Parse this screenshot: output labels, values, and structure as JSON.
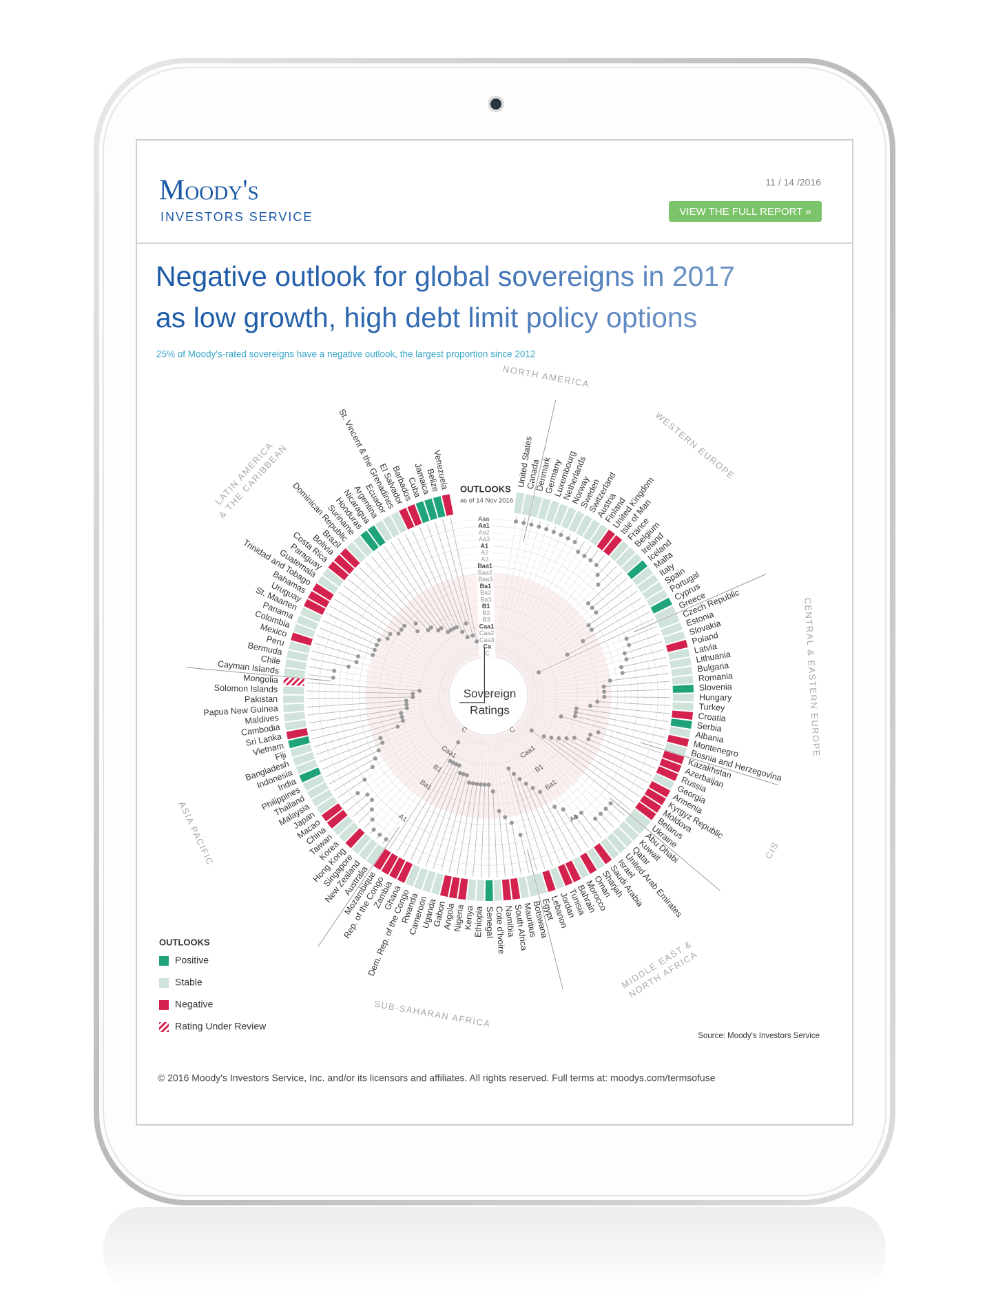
{
  "header": {
    "logo": "Moody's",
    "logo_sub": "INVESTORS SERVICE",
    "date": "11 / 14 /2016",
    "button": "VIEW THE FULL REPORT »"
  },
  "chart_data": {
    "type": "radial-ratings",
    "title_lines": [
      "Negative outlook for global sovereigns in 2017",
      "as low growth, high debt limit policy options"
    ],
    "subtitle": "25% of Moody's-rated sovereigns have a negative outlook, the largest proportion since 2012",
    "outlooks_title": "OUTLOOKS",
    "outlooks_date": "as of 14 Nov 2016",
    "center_label_lines": [
      "Sovereign",
      "Ratings"
    ],
    "rating_scale": [
      "Aaa",
      "Aa1",
      "Aa2",
      "Aa3",
      "A1",
      "A2",
      "A3",
      "Baa1",
      "Baa2",
      "Baa3",
      "Ba1",
      "Ba2",
      "Ba3",
      "B1",
      "B2",
      "B3",
      "Caa1",
      "Caa2",
      "Caa3",
      "Ca",
      "C"
    ],
    "ring_labels": [
      "C",
      "Caa1",
      "B1",
      "Ba1",
      "A1"
    ],
    "legend_title": "OUTLOOKS",
    "legend": [
      {
        "label": "Positive",
        "color": "#1fa37a"
      },
      {
        "label": "Stable",
        "color": "#cfe3db"
      },
      {
        "label": "Negative",
        "color": "#d3224d"
      },
      {
        "label": "Rating Under Review",
        "color": "#d3224d",
        "hatched": true
      }
    ],
    "source": "Source: Moody's Investors Service",
    "regions": [
      {
        "label_lines": [
          "NORTH AMERICA"
        ],
        "countries": [
          {
            "name": "United States",
            "rating": "Aaa",
            "outlook": "Stable"
          },
          {
            "name": "Canada",
            "rating": "Aaa",
            "outlook": "Stable"
          }
        ]
      },
      {
        "label_lines": [
          "WESTERN EUROPE"
        ],
        "countries": [
          {
            "name": "Denmark",
            "rating": "Aaa",
            "outlook": "Stable"
          },
          {
            "name": "Germany",
            "rating": "Aaa",
            "outlook": "Stable"
          },
          {
            "name": "Luxembourg",
            "rating": "Aaa",
            "outlook": "Stable"
          },
          {
            "name": "Netherlands",
            "rating": "Aaa",
            "outlook": "Stable"
          },
          {
            "name": "Norway",
            "rating": "Aaa",
            "outlook": "Stable"
          },
          {
            "name": "Sweden",
            "rating": "Aaa",
            "outlook": "Stable"
          },
          {
            "name": "Switzerland",
            "rating": "Aaa",
            "outlook": "Stable"
          },
          {
            "name": "Austria",
            "rating": "Aa1",
            "outlook": "Stable"
          },
          {
            "name": "Finland",
            "rating": "Aa1",
            "outlook": "Stable"
          },
          {
            "name": "United Kingdom",
            "rating": "Aa1",
            "outlook": "Negative"
          },
          {
            "name": "Isle of Man",
            "rating": "Aa1",
            "outlook": "Negative"
          },
          {
            "name": "France",
            "rating": "Aa2",
            "outlook": "Stable"
          },
          {
            "name": "Belgium",
            "rating": "Aa3",
            "outlook": "Stable"
          },
          {
            "name": "Ireland",
            "rating": "A3",
            "outlook": "Stable"
          },
          {
            "name": "Iceland",
            "rating": "A3",
            "outlook": "Positive"
          },
          {
            "name": "Malta",
            "rating": "A3",
            "outlook": "Stable"
          },
          {
            "name": "Italy",
            "rating": "Baa2",
            "outlook": "Stable"
          },
          {
            "name": "Spain",
            "rating": "Baa2",
            "outlook": "Stable"
          },
          {
            "name": "Portugal",
            "rating": "Ba1",
            "outlook": "Stable"
          },
          {
            "name": "Cyprus",
            "rating": "B1",
            "outlook": "Positive"
          },
          {
            "name": "Greece",
            "rating": "Caa3",
            "outlook": "Stable"
          }
        ]
      },
      {
        "label_lines": [
          "CENTRAL & EASTERN EUROPE"
        ],
        "countries": [
          {
            "name": "Czech Republic",
            "rating": "A1",
            "outlook": "Stable"
          },
          {
            "name": "Estonia",
            "rating": "A1",
            "outlook": "Stable"
          },
          {
            "name": "Slovakia",
            "rating": "A2",
            "outlook": "Stable"
          },
          {
            "name": "Poland",
            "rating": "A2",
            "outlook": "Negative"
          },
          {
            "name": "Latvia",
            "rating": "A3",
            "outlook": "Stable"
          },
          {
            "name": "Lithuania",
            "rating": "A3",
            "outlook": "Stable"
          },
          {
            "name": "Bulgaria",
            "rating": "Baa2",
            "outlook": "Stable"
          },
          {
            "name": "Romania",
            "rating": "Baa3",
            "outlook": "Stable"
          },
          {
            "name": "Slovenia",
            "rating": "Baa3",
            "outlook": "Positive"
          },
          {
            "name": "Hungary",
            "rating": "Baa3",
            "outlook": "Stable"
          },
          {
            "name": "Turkey",
            "rating": "Ba1",
            "outlook": "Stable"
          },
          {
            "name": "Croatia",
            "rating": "Ba2",
            "outlook": "Negative"
          },
          {
            "name": "Serbia",
            "rating": "B1",
            "outlook": "Positive"
          },
          {
            "name": "Albania",
            "rating": "B1",
            "outlook": "Stable"
          },
          {
            "name": "Montenegro",
            "rating": "B1",
            "outlook": "Negative"
          },
          {
            "name": "Bosnia and Herzegovina",
            "rating": "B3",
            "outlook": "Stable"
          }
        ]
      },
      {
        "label_lines": [
          "CIS"
        ],
        "countries": [
          {
            "name": "Kazakhstan",
            "rating": "Baa3",
            "outlook": "Negative"
          },
          {
            "name": "Azerbaijan",
            "rating": "Ba1",
            "outlook": "Negative"
          },
          {
            "name": "Russia",
            "rating": "Ba1",
            "outlook": "Negative"
          },
          {
            "name": "Georgia",
            "rating": "Ba3",
            "outlook": "Stable"
          },
          {
            "name": "Armenia",
            "rating": "B1",
            "outlook": "Negative"
          },
          {
            "name": "Kyrgyz Republic",
            "rating": "B2",
            "outlook": "Negative"
          },
          {
            "name": "Moldova",
            "rating": "B3",
            "outlook": "Negative"
          },
          {
            "name": "Belarus",
            "rating": "Caa1",
            "outlook": "Negative"
          },
          {
            "name": "Ukraine",
            "rating": "Caa3",
            "outlook": "Stable"
          }
        ]
      },
      {
        "label_lines": [
          "MIDDLE EAST &",
          "NORTH AFRICA"
        ],
        "countries": [
          {
            "name": "Abu Dhabi",
            "rating": "Aa2",
            "outlook": "Stable"
          },
          {
            "name": "Kuwait",
            "rating": "Aa2",
            "outlook": "Stable"
          },
          {
            "name": "Qatar",
            "rating": "Aa2",
            "outlook": "Stable"
          },
          {
            "name": "United Arab Emirates",
            "rating": "Aa2",
            "outlook": "Stable"
          },
          {
            "name": "Israel",
            "rating": "A1",
            "outlook": "Stable"
          },
          {
            "name": "Saudi Arabia",
            "rating": "A1",
            "outlook": "Negative"
          },
          {
            "name": "Sharjah",
            "rating": "A3",
            "outlook": "Stable"
          },
          {
            "name": "Oman",
            "rating": "Baa1",
            "outlook": "Negative"
          },
          {
            "name": "Morocco",
            "rating": "Ba1",
            "outlook": "Stable"
          },
          {
            "name": "Bahrain",
            "rating": "Ba2",
            "outlook": "Negative"
          },
          {
            "name": "Tunisia",
            "rating": "Ba3",
            "outlook": "Negative"
          },
          {
            "name": "Jordan",
            "rating": "B1",
            "outlook": "Stable"
          },
          {
            "name": "Lebanon",
            "rating": "B2",
            "outlook": "Negative"
          },
          {
            "name": "Egypt",
            "rating": "B3",
            "outlook": "Stable"
          }
        ]
      },
      {
        "label_lines": [
          "SUB-SAHARAN AFRICA"
        ],
        "countries": [
          {
            "name": "Botswana",
            "rating": "A2",
            "outlook": "Stable"
          },
          {
            "name": "Mauritius",
            "rating": "Baa1",
            "outlook": "Stable"
          },
          {
            "name": "South Africa",
            "rating": "Baa2",
            "outlook": "Negative"
          },
          {
            "name": "Namibia",
            "rating": "Baa3",
            "outlook": "Negative"
          },
          {
            "name": "Cote d'Ivoire",
            "rating": "Ba3",
            "outlook": "Stable"
          },
          {
            "name": "Senegal",
            "rating": "B1",
            "outlook": "Positive"
          },
          {
            "name": "Ethiopia",
            "rating": "B1",
            "outlook": "Stable"
          },
          {
            "name": "Kenya",
            "rating": "B1",
            "outlook": "Stable"
          },
          {
            "name": "Nigeria",
            "rating": "B1",
            "outlook": "Negative"
          },
          {
            "name": "Angola",
            "rating": "B1",
            "outlook": "Negative"
          },
          {
            "name": "Gabon",
            "rating": "B1",
            "outlook": "Negative"
          },
          {
            "name": "Uganda",
            "rating": "B2",
            "outlook": "Stable"
          },
          {
            "name": "Cameroon",
            "rating": "B2",
            "outlook": "Stable"
          },
          {
            "name": "Rwanda",
            "rating": "B2",
            "outlook": "Stable"
          },
          {
            "name": "Dem. Rep. of the Congo",
            "rating": "B3",
            "outlook": "Stable"
          },
          {
            "name": "Ghana",
            "rating": "B3",
            "outlook": "Negative"
          },
          {
            "name": "Zambia",
            "rating": "B3",
            "outlook": "Negative"
          },
          {
            "name": "Rep. of the Congo",
            "rating": "B3",
            "outlook": "Negative"
          },
          {
            "name": "Mozambique",
            "rating": "Caa3",
            "outlook": "Negative"
          }
        ]
      },
      {
        "label_lines": [
          "ASIA PACIFIC"
        ],
        "countries": [
          {
            "name": "Australia",
            "rating": "Aaa",
            "outlook": "Stable"
          },
          {
            "name": "New Zealand",
            "rating": "Aaa",
            "outlook": "Stable"
          },
          {
            "name": "Singapore",
            "rating": "Aaa",
            "outlook": "Stable"
          },
          {
            "name": "Hong Kong",
            "rating": "Aa1",
            "outlook": "Negative"
          },
          {
            "name": "Korea",
            "rating": "Aa2",
            "outlook": "Stable"
          },
          {
            "name": "Taiwan",
            "rating": "Aa3",
            "outlook": "Stable"
          },
          {
            "name": "China",
            "rating": "Aa3",
            "outlook": "Negative"
          },
          {
            "name": "Macao",
            "rating": "Aa2",
            "outlook": "Negative"
          },
          {
            "name": "Japan",
            "rating": "A1",
            "outlook": "Stable"
          },
          {
            "name": "Malaysia",
            "rating": "A3",
            "outlook": "Stable"
          },
          {
            "name": "Thailand",
            "rating": "Baa1",
            "outlook": "Stable"
          },
          {
            "name": "Philippines",
            "rating": "Baa2",
            "outlook": "Stable"
          },
          {
            "name": "India",
            "rating": "Baa3",
            "outlook": "Positive"
          },
          {
            "name": "Indonesia",
            "rating": "Baa3",
            "outlook": "Stable"
          },
          {
            "name": "Bangladesh",
            "rating": "Ba3",
            "outlook": "Stable"
          },
          {
            "name": "Fiji",
            "rating": "B1",
            "outlook": "Stable"
          },
          {
            "name": "Vietnam",
            "rating": "B1",
            "outlook": "Positive"
          },
          {
            "name": "Sri Lanka",
            "rating": "B1",
            "outlook": "Negative"
          },
          {
            "name": "Cambodia",
            "rating": "B2",
            "outlook": "Stable"
          },
          {
            "name": "Maldives",
            "rating": "B2",
            "outlook": "Stable"
          },
          {
            "name": "Papua New Guinea",
            "rating": "B2",
            "outlook": "Stable"
          },
          {
            "name": "Pakistan",
            "rating": "B3",
            "outlook": "Stable"
          },
          {
            "name": "Solomon Islands",
            "rating": "B3",
            "outlook": "Stable"
          },
          {
            "name": "Mongolia",
            "rating": "Caa1",
            "outlook": "Rating Under Review"
          }
        ]
      },
      {
        "label_lines": [
          "LATIN AMERICA",
          "& THE CARIBBEAN"
        ],
        "countries": [
          {
            "name": "Cayman Islands",
            "rating": "Aa3",
            "outlook": "Stable"
          },
          {
            "name": "Chile",
            "rating": "Aa3",
            "outlook": "Stable"
          },
          {
            "name": "Bermuda",
            "rating": "A2",
            "outlook": "Stable"
          },
          {
            "name": "Peru",
            "rating": "A3",
            "outlook": "Stable"
          },
          {
            "name": "Mexico",
            "rating": "A3",
            "outlook": "Negative"
          },
          {
            "name": "Colombia",
            "rating": "Baa2",
            "outlook": "Stable"
          },
          {
            "name": "Panama",
            "rating": "Baa2",
            "outlook": "Stable"
          },
          {
            "name": "St. Maarten",
            "rating": "Baa2",
            "outlook": "Stable"
          },
          {
            "name": "Uruguay",
            "rating": "Baa2",
            "outlook": "Negative"
          },
          {
            "name": "Bahamas",
            "rating": "Baa3",
            "outlook": "Negative"
          },
          {
            "name": "Trinidad and Tobago",
            "rating": "Baa3",
            "outlook": "Negative"
          },
          {
            "name": "Guatemala",
            "rating": "Ba1",
            "outlook": "Stable"
          },
          {
            "name": "Paraguay",
            "rating": "Ba1",
            "outlook": "Stable"
          },
          {
            "name": "Costa Rica",
            "rating": "Ba1",
            "outlook": "Negative"
          },
          {
            "name": "Bolivia",
            "rating": "Ba3",
            "outlook": "Negative"
          },
          {
            "name": "Brazil",
            "rating": "Ba2",
            "outlook": "Negative"
          },
          {
            "name": "Dominican Republic",
            "rating": "B1",
            "outlook": "Stable"
          },
          {
            "name": "Suriname",
            "rating": "B1",
            "outlook": "Stable"
          },
          {
            "name": "Honduras",
            "rating": "B2",
            "outlook": "Positive"
          },
          {
            "name": "Nicaragua",
            "rating": "B2",
            "outlook": "Positive"
          },
          {
            "name": "Argentina",
            "rating": "B3",
            "outlook": "Stable"
          },
          {
            "name": "Ecuador",
            "rating": "B3",
            "outlook": "Stable"
          },
          {
            "name": "St. Vincent & the Grenadines",
            "rating": "B3",
            "outlook": "Stable"
          },
          {
            "name": "El Salvador",
            "rating": "B3",
            "outlook": "Negative"
          },
          {
            "name": "Barbados",
            "rating": "Caa1",
            "outlook": "Negative"
          },
          {
            "name": "Cuba",
            "rating": "Caa2",
            "outlook": "Positive"
          },
          {
            "name": "Jamaica",
            "rating": "B3",
            "outlook": "Positive"
          },
          {
            "name": "Belize",
            "rating": "Caa2",
            "outlook": "Positive"
          },
          {
            "name": "Venezuela",
            "rating": "Caa3",
            "outlook": "Negative"
          }
        ]
      }
    ]
  },
  "footer": {
    "copyright": "© 2016 Moody's Investors Service, Inc. and/or its licensors and affiliates. All rights reserved. Full terms at: moodys.com/termsofuse"
  }
}
